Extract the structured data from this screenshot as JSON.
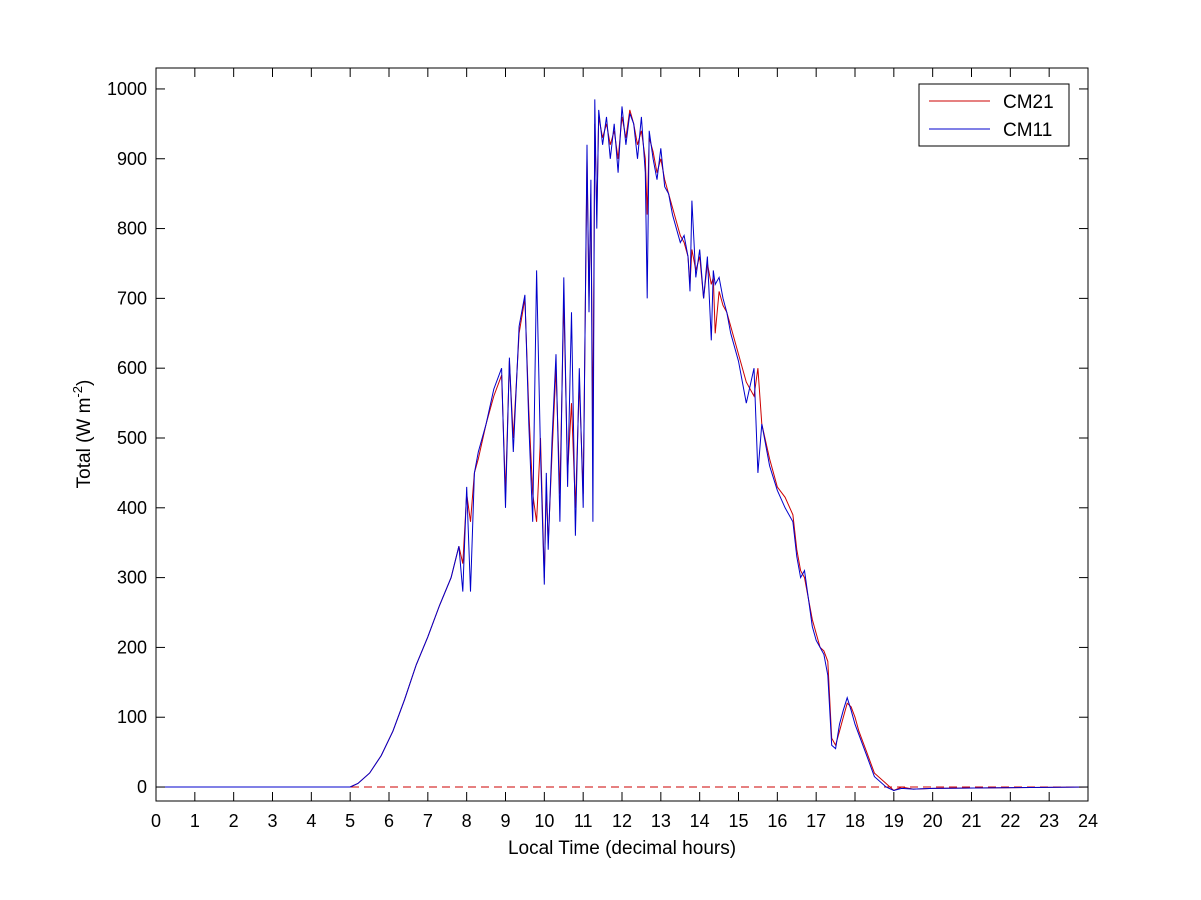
{
  "chart_data": {
    "type": "line",
    "title": "",
    "xlabel": "Local Time (decimal hours)",
    "ylabel": "Total (W m",
    "ylabel_sup": "-2",
    "ylabel_end": ")",
    "xlim": [
      0,
      24
    ],
    "ylim": [
      -20,
      1030
    ],
    "xticks": [
      0,
      1,
      2,
      3,
      4,
      5,
      6,
      7,
      8,
      9,
      10,
      11,
      12,
      13,
      14,
      15,
      16,
      17,
      18,
      19,
      20,
      21,
      22,
      23,
      24
    ],
    "yticks": [
      0,
      100,
      200,
      300,
      400,
      500,
      600,
      700,
      800,
      900,
      1000
    ],
    "grid": false,
    "legend_position": "top-right",
    "reference_line": {
      "y": 0,
      "style": "dashed",
      "color": "#cc0000"
    },
    "series": [
      {
        "name": "CM21",
        "color": "#cc0000",
        "x": [
          0,
          5,
          5.2,
          5.5,
          5.8,
          6.1,
          6.4,
          6.7,
          7.0,
          7.3,
          7.6,
          7.8,
          7.9,
          8.0,
          8.1,
          8.2,
          8.3,
          8.5,
          8.7,
          8.9,
          9.0,
          9.1,
          9.2,
          9.35,
          9.5,
          9.6,
          9.7,
          9.8,
          9.9,
          10.0,
          10.05,
          10.1,
          10.2,
          10.3,
          10.4,
          10.5,
          10.6,
          10.7,
          10.8,
          10.9,
          11.0,
          11.1,
          11.15,
          11.2,
          11.25,
          11.3,
          11.35,
          11.4,
          11.5,
          11.6,
          11.7,
          11.8,
          11.9,
          12.0,
          12.1,
          12.2,
          12.3,
          12.4,
          12.5,
          12.6,
          12.65,
          12.7,
          12.8,
          12.9,
          13.0,
          13.1,
          13.2,
          13.3,
          13.4,
          13.5,
          13.6,
          13.7,
          13.75,
          13.8,
          13.9,
          14.0,
          14.1,
          14.2,
          14.3,
          14.35,
          14.4,
          14.5,
          14.6,
          14.7,
          14.8,
          15.0,
          15.2,
          15.4,
          15.5,
          15.6,
          15.8,
          16.0,
          16.2,
          16.4,
          16.5,
          16.6,
          16.7,
          16.8,
          16.9,
          17.0,
          17.1,
          17.2,
          17.3,
          17.4,
          17.5,
          17.6,
          17.7,
          17.8,
          17.9,
          18.0,
          18.1,
          18.3,
          18.5,
          18.8,
          19.0,
          19.2,
          19.5,
          20.0,
          24
        ],
        "y": [
          0,
          0,
          5,
          20,
          45,
          80,
          125,
          175,
          215,
          260,
          300,
          345,
          320,
          420,
          380,
          450,
          470,
          520,
          560,
          590,
          420,
          610,
          500,
          650,
          700,
          540,
          420,
          380,
          500,
          300,
          430,
          350,
          480,
          600,
          420,
          700,
          450,
          550,
          400,
          580,
          420,
          900,
          700,
          850,
          500,
          950,
          820,
          960,
          930,
          950,
          920,
          940,
          900,
          960,
          930,
          970,
          950,
          920,
          940,
          900,
          820,
          930,
          910,
          880,
          900,
          870,
          850,
          830,
          810,
          790,
          780,
          760,
          720,
          770,
          740,
          760,
          700,
          750,
          720,
          730,
          650,
          710,
          690,
          680,
          660,
          620,
          580,
          560,
          600,
          520,
          470,
          430,
          415,
          390,
          340,
          310,
          300,
          270,
          240,
          220,
          200,
          195,
          180,
          70,
          60,
          80,
          100,
          120,
          115,
          100,
          80,
          50,
          20,
          5,
          -5,
          0,
          -3,
          -2,
          0
        ]
      },
      {
        "name": "CM11",
        "color": "#0000cc",
        "x": [
          0,
          5,
          5.2,
          5.5,
          5.8,
          6.1,
          6.4,
          6.7,
          7.0,
          7.3,
          7.6,
          7.8,
          7.9,
          8.0,
          8.1,
          8.2,
          8.3,
          8.5,
          8.7,
          8.9,
          9.0,
          9.1,
          9.2,
          9.35,
          9.5,
          9.6,
          9.7,
          9.8,
          9.9,
          10.0,
          10.05,
          10.1,
          10.2,
          10.3,
          10.4,
          10.5,
          10.6,
          10.7,
          10.8,
          10.9,
          11.0,
          11.1,
          11.15,
          11.2,
          11.25,
          11.3,
          11.35,
          11.4,
          11.5,
          11.6,
          11.7,
          11.8,
          11.9,
          12.0,
          12.1,
          12.2,
          12.3,
          12.4,
          12.5,
          12.6,
          12.65,
          12.7,
          12.8,
          12.9,
          13.0,
          13.1,
          13.2,
          13.3,
          13.4,
          13.5,
          13.6,
          13.7,
          13.75,
          13.8,
          13.9,
          14.0,
          14.1,
          14.2,
          14.3,
          14.35,
          14.4,
          14.5,
          14.6,
          14.7,
          14.8,
          15.0,
          15.2,
          15.4,
          15.5,
          15.6,
          15.8,
          16.0,
          16.2,
          16.4,
          16.5,
          16.6,
          16.7,
          16.8,
          16.9,
          17.0,
          17.1,
          17.2,
          17.3,
          17.4,
          17.5,
          17.6,
          17.7,
          17.8,
          17.9,
          18.0,
          18.1,
          18.3,
          18.5,
          18.8,
          19.0,
          19.2,
          19.5,
          20.0,
          24
        ],
        "y": [
          0,
          0,
          5,
          20,
          45,
          80,
          125,
          175,
          215,
          260,
          300,
          345,
          280,
          430,
          280,
          450,
          480,
          520,
          570,
          600,
          400,
          615,
          480,
          660,
          705,
          520,
          380,
          740,
          480,
          290,
          450,
          340,
          500,
          620,
          380,
          730,
          430,
          680,
          360,
          600,
          400,
          920,
          680,
          870,
          380,
          985,
          800,
          970,
          920,
          960,
          900,
          950,
          880,
          975,
          920,
          965,
          950,
          900,
          960,
          880,
          700,
          940,
          900,
          870,
          915,
          860,
          850,
          820,
          800,
          780,
          790,
          760,
          710,
          840,
          730,
          770,
          700,
          760,
          640,
          740,
          720,
          730,
          700,
          680,
          650,
          610,
          550,
          600,
          450,
          520,
          460,
          425,
          400,
          380,
          330,
          300,
          310,
          270,
          230,
          210,
          200,
          190,
          160,
          60,
          55,
          90,
          110,
          128,
          110,
          90,
          75,
          45,
          15,
          0,
          -5,
          -2,
          -3,
          -2,
          0
        ]
      }
    ]
  }
}
